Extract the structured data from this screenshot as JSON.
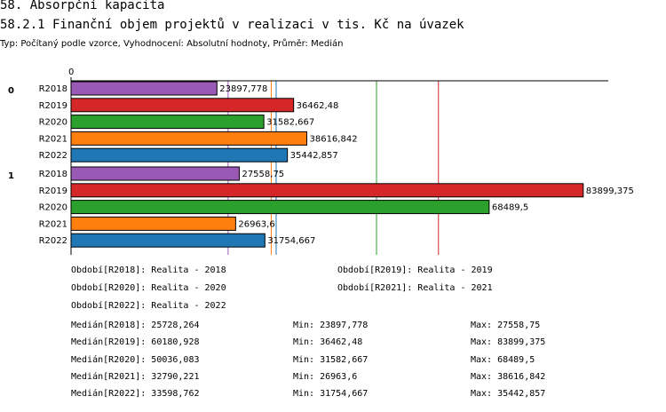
{
  "header": {
    "section_title": "58. Absorpční kapacita",
    "chart_title": "58.2.1 Finanční objem projektů v realizaci v tis. Kč na úvazek",
    "subtitle": "Typ: Počítaný podle vzorce, Vyhodnocení: Absolutní hodnoty, Průměr: Medián"
  },
  "chart_data": {
    "type": "bar",
    "orientation": "horizontal",
    "title": "58.2.1 Finanční objem projektů v realizaci v tis. Kč na úvazek",
    "axis_zero_label": "0",
    "xlim": [
      0,
      88000
    ],
    "series_colors": {
      "R2018": "#9b59b6",
      "R2019": "#d62728",
      "R2020": "#2ca02c",
      "R2021": "#ff7f0e",
      "R2022": "#1f77b4"
    },
    "groups": [
      {
        "label": "0",
        "bars": [
          {
            "category": "R2018",
            "value": 23897.778,
            "label": "23897,778"
          },
          {
            "category": "R2019",
            "value": 36462.48,
            "label": "36462,48"
          },
          {
            "category": "R2020",
            "value": 31582.667,
            "label": "31582,667"
          },
          {
            "category": "R2021",
            "value": 38616.842,
            "label": "38616,842"
          },
          {
            "category": "R2022",
            "value": 35442.857,
            "label": "35442,857"
          }
        ]
      },
      {
        "label": "1",
        "bars": [
          {
            "category": "R2018",
            "value": 27558.75,
            "label": "27558,75"
          },
          {
            "category": "R2019",
            "value": 83899.375,
            "label": "83899,375"
          },
          {
            "category": "R2020",
            "value": 68489.5,
            "label": "68489,5"
          },
          {
            "category": "R2021",
            "value": 26963.6,
            "label": "26963,6"
          },
          {
            "category": "R2022",
            "value": 31754.667,
            "label": "31754,667"
          }
        ]
      }
    ],
    "median_lines": [
      {
        "category": "R2018",
        "value": 25728.264
      },
      {
        "category": "R2019",
        "value": 60180.928
      },
      {
        "category": "R2020",
        "value": 50036.083
      },
      {
        "category": "R2021",
        "value": 32790.221
      },
      {
        "category": "R2022",
        "value": 33598.762
      }
    ]
  },
  "legend": {
    "periods": [
      "Období[R2018]: Realita - 2018",
      "Období[R2019]: Realita - 2019",
      "Období[R2020]: Realita - 2020",
      "Období[R2021]: Realita - 2021",
      "Období[R2022]: Realita - 2022"
    ],
    "stats": [
      {
        "median": "Medián[R2018]: 25728,264",
        "min": "Min: 23897,778",
        "max": "Max: 27558,75"
      },
      {
        "median": "Medián[R2019]: 60180,928",
        "min": "Min: 36462,48",
        "max": "Max: 83899,375"
      },
      {
        "median": "Medián[R2020]: 50036,083",
        "min": "Min: 31582,667",
        "max": "Max: 68489,5"
      },
      {
        "median": "Medián[R2021]: 32790,221",
        "min": "Min: 26963,6",
        "max": "Max: 38616,842"
      },
      {
        "median": "Medián[R2022]: 33598,762",
        "min": "Min: 31754,667",
        "max": "Max: 35442,857"
      }
    ]
  }
}
